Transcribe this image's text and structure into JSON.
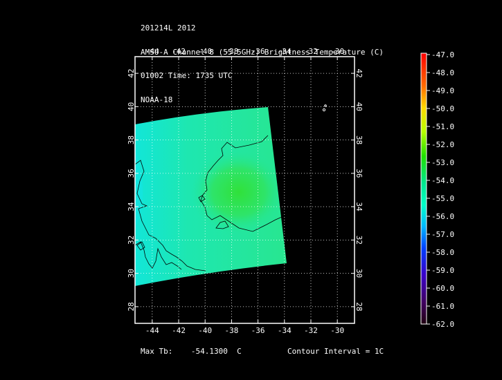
{
  "header": {
    "lines": [
      "201214L 2012",
      "AMSU-A Channel 8 (55.5GHz) Brightness Temperature (C)",
      "01002 Time: 1735 UTC",
      "NOAA-18"
    ]
  },
  "map": {
    "lon_ticks": [
      "-44",
      "-42",
      "-40",
      "-38",
      "-36",
      "-34",
      "-32",
      "-30"
    ],
    "lat_ticks": [
      "42",
      "40",
      "38",
      "36",
      "34",
      "32",
      "30",
      "28"
    ],
    "lon_range": [
      -45.3,
      -28.7
    ],
    "lat_range": [
      27.0,
      43.0
    ],
    "swath_color": "#1fe8a8",
    "warm_core_color": "#30e640"
  },
  "colorbar": {
    "labels": [
      "-47.0",
      "-48.0",
      "-49.0",
      "-50.0",
      "-51.0",
      "-52.0",
      "-53.0",
      "-54.0",
      "-55.0",
      "-56.0",
      "-57.0",
      "-58.0",
      "-59.0",
      "-60.0",
      "-61.0",
      "-62.0"
    ],
    "colors_top_to_bottom": [
      "#ff0000",
      "#ff8000",
      "#ffe000",
      "#b0ff00",
      "#00e000",
      "#00ffc0",
      "#00c0ff",
      "#0040ff",
      "#3000c0",
      "#200020"
    ]
  },
  "footer": {
    "max_label": "Max Tb:",
    "max_value": "-54.1300",
    "max_unit": "C",
    "contour": "Contour Interval = 1C"
  }
}
